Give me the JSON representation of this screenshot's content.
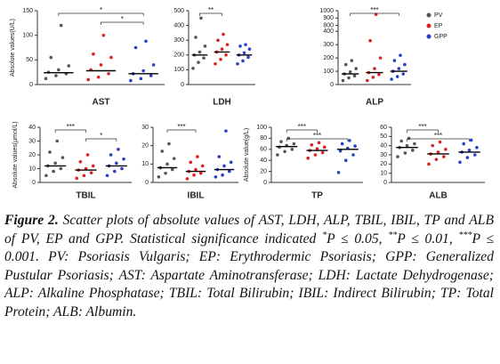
{
  "chart_data": [
    {
      "type": "scatter",
      "title": "AST",
      "ylabel": "Absolute values(U/L)",
      "ylim": [
        0,
        150
      ],
      "yticks": [
        0,
        50,
        100,
        150
      ],
      "series": [
        {
          "color": "#555555",
          "values": [
            12,
            18,
            22,
            25,
            30,
            38,
            55,
            120
          ],
          "median": 24
        },
        {
          "color": "#e02020",
          "values": [
            10,
            15,
            22,
            30,
            40,
            55,
            62,
            100
          ],
          "median": 28
        },
        {
          "color": "#2a3fc8",
          "values": [
            8,
            12,
            18,
            22,
            28,
            40,
            75,
            88
          ],
          "median": 22
        }
      ],
      "significance": [
        {
          "from": 0,
          "to": 2,
          "label": "*"
        },
        {
          "from": 1,
          "to": 2,
          "label": "*"
        }
      ]
    },
    {
      "type": "scatter",
      "title": "LDH",
      "ylim": [
        0,
        500
      ],
      "yticks": [
        0,
        100,
        200,
        300,
        400,
        500
      ],
      "series": [
        {
          "color": "#555555",
          "values": [
            110,
            150,
            180,
            200,
            220,
            260,
            320,
            450
          ],
          "median": 200
        },
        {
          "color": "#e02020",
          "values": [
            140,
            170,
            200,
            220,
            240,
            270,
            300,
            340
          ],
          "median": 220
        },
        {
          "color": "#2a3fc8",
          "values": [
            140,
            160,
            185,
            200,
            215,
            240,
            260,
            270
          ],
          "median": 200
        }
      ],
      "significance": [
        {
          "from": 0,
          "to": 1,
          "label": "**"
        }
      ]
    },
    {
      "type": "scatter",
      "title": "ALP",
      "ylim": [
        0,
        1000
      ],
      "axis_break": [
        400,
        800
      ],
      "yticks": [
        0,
        100,
        200,
        300,
        400,
        800,
        900,
        1000
      ],
      "series": [
        {
          "color": "#555555",
          "values": [
            30,
            50,
            65,
            80,
            95,
            120,
            150,
            180
          ],
          "median": 80
        },
        {
          "color": "#e02020",
          "values": [
            30,
            55,
            75,
            90,
            120,
            200,
            330,
            950
          ],
          "median": 90
        },
        {
          "color": "#2a3fc8",
          "values": [
            40,
            60,
            80,
            100,
            120,
            150,
            180,
            220
          ],
          "median": 100
        }
      ],
      "significance": [
        {
          "from": 0,
          "to": 2,
          "label": "***"
        }
      ]
    },
    {
      "type": "scatter",
      "title": "TBIL",
      "ylabel": "Absolute values(μmol/L)",
      "ylim": [
        0,
        40
      ],
      "yticks": [
        0,
        10,
        20,
        30,
        40
      ],
      "series": [
        {
          "color": "#555555",
          "values": [
            5,
            8,
            10,
            12,
            14,
            18,
            22,
            30
          ],
          "median": 12
        },
        {
          "color": "#e02020",
          "values": [
            3,
            5,
            7,
            9,
            10,
            12,
            15,
            20
          ],
          "median": 9
        },
        {
          "color": "#2a3fc8",
          "values": [
            5,
            8,
            10,
            12,
            14,
            17,
            20,
            24
          ],
          "median": 12
        }
      ],
      "significance": [
        {
          "from": 0,
          "to": 1,
          "label": "***"
        },
        {
          "from": 1,
          "to": 2,
          "label": "*"
        }
      ]
    },
    {
      "type": "scatter",
      "title": "IBIL",
      "ylim": [
        0,
        30
      ],
      "yticks": [
        0,
        10,
        20,
        30
      ],
      "series": [
        {
          "color": "#555555",
          "values": [
            3,
            5,
            7,
            8,
            10,
            13,
            17,
            21
          ],
          "median": 8
        },
        {
          "color": "#e02020",
          "values": [
            2,
            4,
            5,
            6,
            7,
            9,
            11,
            14
          ],
          "median": 6
        },
        {
          "color": "#2a3fc8",
          "values": [
            3,
            4,
            6,
            7,
            9,
            11,
            14,
            28
          ],
          "median": 7
        }
      ],
      "significance": [
        {
          "from": 0,
          "to": 1,
          "label": "***"
        }
      ]
    },
    {
      "type": "scatter",
      "title": "TP",
      "ylabel": "Absolute value(g/L)",
      "ylim": [
        0,
        100
      ],
      "yticks": [
        0,
        20,
        40,
        60,
        80,
        100
      ],
      "series": [
        {
          "color": "#555555",
          "values": [
            50,
            56,
            60,
            64,
            67,
            70,
            74,
            80
          ],
          "median": 65
        },
        {
          "color": "#e02020",
          "values": [
            44,
            50,
            54,
            58,
            61,
            64,
            68,
            72
          ],
          "median": 58
        },
        {
          "color": "#2a3fc8",
          "values": [
            18,
            40,
            50,
            57,
            62,
            66,
            70,
            76
          ],
          "median": 60
        }
      ],
      "significance": [
        {
          "from": 0,
          "to": 1,
          "label": "***"
        },
        {
          "from": 0,
          "to": 2,
          "label": "***"
        }
      ]
    },
    {
      "type": "scatter",
      "title": "ALB",
      "ylim": [
        0,
        60
      ],
      "yticks": [
        0,
        10,
        20,
        30,
        40,
        50,
        60
      ],
      "series": [
        {
          "color": "#555555",
          "values": [
            28,
            32,
            35,
            38,
            40,
            42,
            45,
            48
          ],
          "median": 38
        },
        {
          "color": "#e02020",
          "values": [
            20,
            25,
            28,
            31,
            33,
            36,
            40,
            44
          ],
          "median": 31
        },
        {
          "color": "#2a3fc8",
          "values": [
            22,
            27,
            30,
            33,
            35,
            38,
            42,
            46
          ],
          "median": 33
        }
      ],
      "significance": [
        {
          "from": 0,
          "to": 1,
          "label": "***"
        },
        {
          "from": 0,
          "to": 2,
          "label": "***"
        }
      ]
    }
  ],
  "legend": [
    {
      "name": "PV",
      "color": "#555555"
    },
    {
      "name": "EP",
      "color": "#e02020"
    },
    {
      "name": "GPP",
      "color": "#2a3fc8"
    }
  ],
  "caption": {
    "label": "Figure 2.",
    "parts": [
      "Scatter plots of absolute values of AST, LDH, ALP, TBIL, IBIL, TP and ALB of PV, EP and GPP. Statistical significance indicated ",
      {
        "sup": "*"
      },
      "P ≤ 0.05, ",
      {
        "sup": "**"
      },
      "P ≤ 0.01, ",
      {
        "sup": "***"
      },
      "P ≤ 0.001. PV: Psoriasis Vulgaris; EP: Erythrodermic Psoriasis; GPP: Generalized Pustular Psoriasis; AST: Aspartate Aminotransferase; LDH: Lactate Dehydrogenase; ALP: Alkaline Phosphatase; TBIL: Total Bilirubin; IBIL: Indirect Bilirubin; TP: Total Protein; ALB: Albumin."
    ]
  }
}
